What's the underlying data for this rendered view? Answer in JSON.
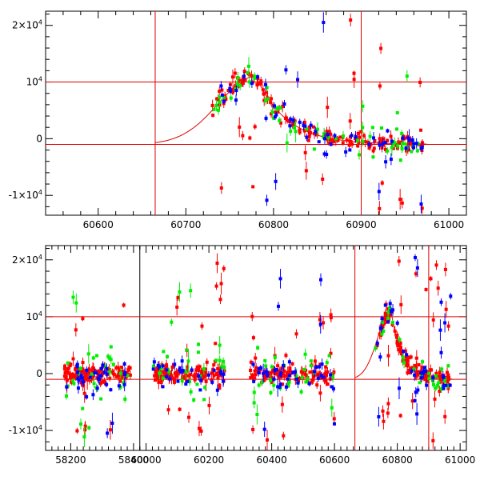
{
  "chart_data": [
    {
      "type": "scatter",
      "title": "",
      "xlabel": "",
      "ylabel": "",
      "xlim": [
        60540,
        61020
      ],
      "ylim": [
        -13500,
        22500
      ],
      "x_ticks": [
        "60600",
        "60700",
        "60800",
        "60900",
        "61000"
      ],
      "y_ticks": [
        {
          "base": "2×10",
          "exp": "4",
          "value": 20000
        },
        {
          "base": "10",
          "exp": "4",
          "value": 10000
        },
        {
          "base": "0",
          "exp": "",
          "value": 0
        },
        {
          "base": "-1×10",
          "exp": "4",
          "value": -10000
        }
      ],
      "hlines": [
        10000,
        -1000
      ],
      "vlines": [
        60665,
        60900
      ],
      "model": {
        "t0": 60665,
        "peak_x": 60780,
        "peak_y": 11000,
        "baseline": -1000,
        "rise": 60,
        "decay": 35
      },
      "gaps": [],
      "series": [
        {
          "color": "#ff0000",
          "clusters": [
            {
              "x0": 60730,
              "x1": 60970,
              "n": 170,
              "model": true,
              "noise": 700
            },
            {
              "x0": 60740,
              "x1": 60970,
              "n": 25,
              "ymin": -13000,
              "ymax": 21000
            }
          ]
        },
        {
          "color": "#00ee00",
          "clusters": [
            {
              "x0": 60730,
              "x1": 60970,
              "n": 55,
              "model": true,
              "noise": 1200
            },
            {
              "x0": 60760,
              "x1": 60960,
              "n": 10,
              "ymin": -4000,
              "ymax": 14000
            }
          ]
        },
        {
          "color": "#0000ff",
          "clusters": [
            {
              "x0": 60740,
              "x1": 60970,
              "n": 50,
              "model": true,
              "noise": 1000
            },
            {
              "x0": 60790,
              "x1": 60970,
              "n": 12,
              "ymin": -12000,
              "ymax": 21000
            }
          ]
        }
      ]
    },
    {
      "type": "scatter",
      "title": "",
      "xlabel": "",
      "ylabel": "",
      "xlim": [
        58120,
        61020
      ],
      "ylim": [
        -13500,
        22500
      ],
      "x_ticks": [
        "58200",
        "58400",
        "60000",
        "60200",
        "60400",
        "60600",
        "60800",
        "61000"
      ],
      "y_ticks": [
        {
          "base": "2×10",
          "exp": "4",
          "value": 20000
        },
        {
          "base": "10",
          "exp": "4",
          "value": 10000
        },
        {
          "base": "0",
          "exp": "",
          "value": 0
        },
        {
          "base": "-1×10",
          "exp": "4",
          "value": -10000
        }
      ],
      "hlines": [
        10000,
        -1000
      ],
      "vlines": [
        60665,
        60900
      ],
      "model": {
        "t0": 60665,
        "peak_x": 60780,
        "peak_y": 11000,
        "baseline": -1000,
        "rise": 60,
        "decay": 35
      },
      "gaps": [
        {
          "from": 58420,
          "to": 59980
        }
      ],
      "series": [
        {
          "color": "#ff0000",
          "clusters": [
            {
              "x0": 58180,
              "x1": 58390,
              "n": 110,
              "center": 0,
              "noise": 800
            },
            {
              "x0": 60020,
              "x1": 60250,
              "n": 110,
              "center": 0,
              "noise": 900
            },
            {
              "x0": 60330,
              "x1": 60600,
              "n": 110,
              "center": 0,
              "noise": 900
            },
            {
              "x0": 60730,
              "x1": 60970,
              "n": 130,
              "model": true,
              "noise": 700
            },
            {
              "x0": 58180,
              "x1": 58390,
              "n": 10,
              "ymin": -11000,
              "ymax": 13000
            },
            {
              "x0": 60020,
              "x1": 60250,
              "n": 22,
              "ymin": -11000,
              "ymax": 20000
            },
            {
              "x0": 60330,
              "x1": 60600,
              "n": 18,
              "ymin": -12000,
              "ymax": 11000
            },
            {
              "x0": 60740,
              "x1": 60970,
              "n": 25,
              "ymin": -13000,
              "ymax": 21500
            }
          ]
        },
        {
          "color": "#00ee00",
          "clusters": [
            {
              "x0": 58180,
              "x1": 58390,
              "n": 25,
              "center": 0,
              "noise": 2500
            },
            {
              "x0": 60020,
              "x1": 60250,
              "n": 25,
              "center": 0,
              "noise": 2500
            },
            {
              "x0": 60330,
              "x1": 60600,
              "n": 25,
              "center": 0,
              "noise": 2500
            },
            {
              "x0": 60730,
              "x1": 60970,
              "n": 30,
              "model": true,
              "noise": 1500
            },
            {
              "x0": 58180,
              "x1": 58390,
              "n": 8,
              "ymin": -12000,
              "ymax": 14000
            },
            {
              "x0": 60020,
              "x1": 60250,
              "n": 6,
              "ymin": -11500,
              "ymax": 17000
            },
            {
              "x0": 60330,
              "x1": 60600,
              "n": 6,
              "ymin": -13000,
              "ymax": 5000
            }
          ]
        },
        {
          "color": "#0000ff",
          "clusters": [
            {
              "x0": 58180,
              "x1": 58390,
              "n": 30,
              "center": 0,
              "noise": 1500
            },
            {
              "x0": 60020,
              "x1": 60250,
              "n": 30,
              "center": 0,
              "noise": 1500
            },
            {
              "x0": 60330,
              "x1": 60600,
              "n": 35,
              "center": 0,
              "noise": 1500
            },
            {
              "x0": 60730,
              "x1": 60970,
              "n": 30,
              "model": true,
              "noise": 1200
            },
            {
              "x0": 58180,
              "x1": 58390,
              "n": 5,
              "ymin": -13000,
              "ymax": 5000
            },
            {
              "x0": 60330,
              "x1": 60600,
              "n": 8,
              "ymin": -10000,
              "ymax": 21000
            },
            {
              "x0": 60740,
              "x1": 60970,
              "n": 12,
              "ymin": -12000,
              "ymax": 21000
            }
          ]
        }
      ]
    }
  ]
}
